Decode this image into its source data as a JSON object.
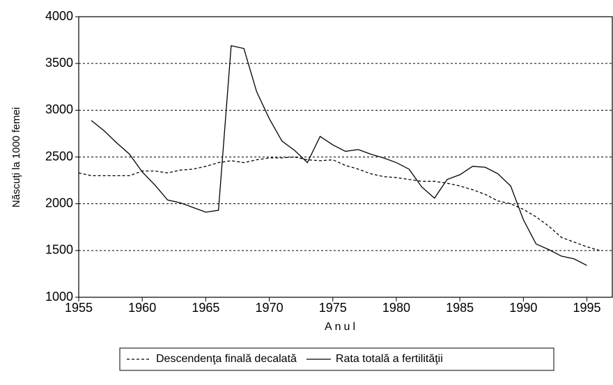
{
  "chart_data": {
    "type": "line",
    "y_label": "Născuţi la 1000 femei",
    "x_label": "Anul",
    "x": [
      1955,
      1956,
      1957,
      1958,
      1959,
      1960,
      1961,
      1962,
      1963,
      1964,
      1965,
      1966,
      1967,
      1968,
      1969,
      1970,
      1971,
      1972,
      1973,
      1974,
      1975,
      1976,
      1977,
      1978,
      1979,
      1980,
      1981,
      1982,
      1983,
      1984,
      1985,
      1986,
      1987,
      1988,
      1989,
      1990,
      1991,
      1992,
      1993,
      1994,
      1995,
      1996
    ],
    "series": [
      {
        "name": "Descendenţa finală decalată",
        "color": "#000000",
        "dash": true,
        "values": [
          2330,
          2300,
          2300,
          2300,
          2300,
          2350,
          2350,
          2330,
          2360,
          2370,
          2400,
          2440,
          2460,
          2440,
          2470,
          2490,
          2490,
          2500,
          2470,
          2460,
          2470,
          2410,
          2370,
          2320,
          2290,
          2280,
          2260,
          2240,
          2240,
          2220,
          2190,
          2150,
          2100,
          2030,
          2000,
          1940,
          1860,
          1760,
          1640,
          1590,
          1540,
          1500
        ]
      },
      {
        "name": "Rata totală a fertilităţii",
        "color": "#000000",
        "dash": false,
        "values": [
          null,
          2890,
          2780,
          2650,
          2530,
          2340,
          2200,
          2040,
          2010,
          1960,
          1910,
          1930,
          3690,
          3660,
          3200,
          2910,
          2670,
          2570,
          2440,
          2720,
          2630,
          2560,
          2580,
          2530,
          2490,
          2440,
          2370,
          2180,
          2060,
          2260,
          2310,
          2400,
          2390,
          2320,
          2190,
          1830,
          1570,
          1510,
          1440,
          1410,
          1340,
          null
        ]
      }
    ],
    "xlim": [
      1955,
      1997
    ],
    "xticks": [
      1955,
      1960,
      1965,
      1970,
      1975,
      1980,
      1985,
      1990,
      1995
    ],
    "ylim": [
      1000,
      4000
    ],
    "yticks": [
      1000,
      1500,
      2000,
      2500,
      3000,
      3500,
      4000
    ],
    "grid": true,
    "legend": "bottom"
  }
}
